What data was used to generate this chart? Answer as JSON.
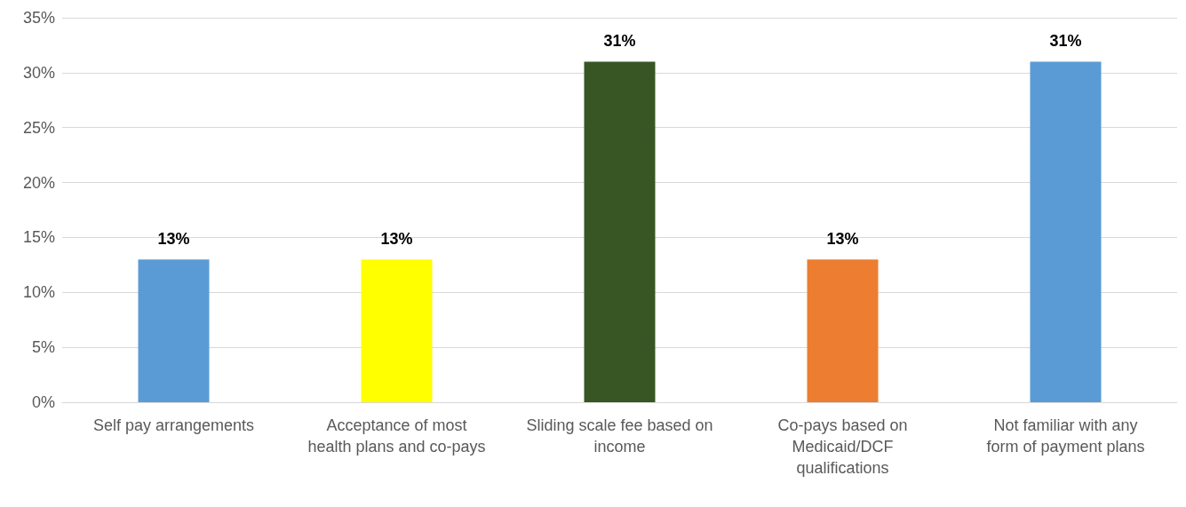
{
  "chart_data": {
    "type": "bar",
    "categories": [
      "Self pay arrangements",
      "Acceptance of most\nhealth plans and co-pays",
      "Sliding scale fee based on\nincome",
      "Co-pays based on\nMedicaid/DCF\nqualifications",
      "Not familiar with any\nform of payment plans"
    ],
    "values": [
      13,
      13,
      31,
      13,
      31
    ],
    "colors": [
      "#5b9bd5",
      "#ffff00",
      "#375623",
      "#ed7d31",
      "#5b9bd5"
    ],
    "value_labels": [
      "13%",
      "13%",
      "31%",
      "13%",
      "31%"
    ],
    "ylim": [
      0,
      35
    ],
    "yticks": [
      {
        "value": 0,
        "label": "0%"
      },
      {
        "value": 5,
        "label": "5%"
      },
      {
        "value": 10,
        "label": "10%"
      },
      {
        "value": 15,
        "label": "15%"
      },
      {
        "value": 20,
        "label": "20%"
      },
      {
        "value": 25,
        "label": "25%"
      },
      {
        "value": 30,
        "label": "30%"
      },
      {
        "value": 35,
        "label": "35%"
      }
    ],
    "grid": true
  }
}
